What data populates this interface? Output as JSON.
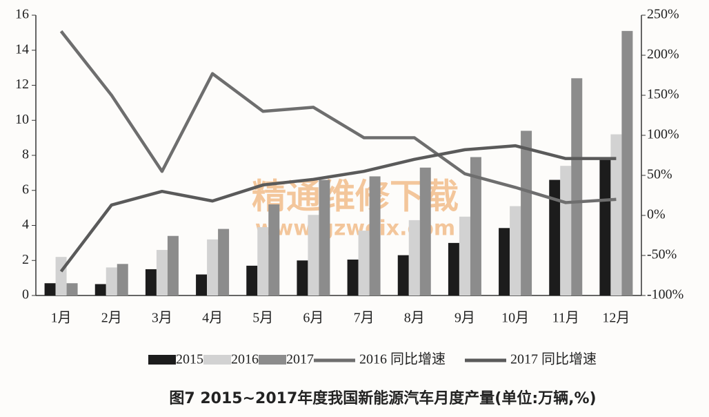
{
  "chart_data": {
    "type": "bar",
    "title": "图7  2015~2017年度我国新能源汽车月度产量(单位:万辆,%)",
    "watermark": "精通维修下载",
    "watermark_url": "www.gzweix.com",
    "categories": [
      "1月",
      "2月",
      "3月",
      "4月",
      "5月",
      "6月",
      "7月",
      "8月",
      "9月",
      "10月",
      "11月",
      "12月"
    ],
    "ylim": [
      0,
      16
    ],
    "yticks": [
      0,
      2,
      4,
      6,
      8,
      10,
      12,
      14,
      16
    ],
    "y2lim": [
      -100,
      250
    ],
    "y2ticks": [
      {
        "value": -100,
        "label": "-100%"
      },
      {
        "value": -50,
        "label": "-50%"
      },
      {
        "value": 0,
        "label": "0%"
      },
      {
        "value": 50,
        "label": "50%"
      },
      {
        "value": 100,
        "label": "100%"
      },
      {
        "value": 150,
        "label": "150%"
      },
      {
        "value": 200,
        "label": "200%"
      },
      {
        "value": 250,
        "label": "250%"
      }
    ],
    "series": [
      {
        "name": "2015",
        "type": "bar",
        "color": "#1c1c1c",
        "values": [
          0.7,
          0.65,
          1.5,
          1.2,
          1.7,
          2.0,
          2.05,
          2.3,
          3.0,
          3.85,
          6.6,
          7.85
        ]
      },
      {
        "name": "2016",
        "type": "bar",
        "color": "#d2d2d2",
        "values": [
          2.2,
          1.6,
          2.6,
          3.2,
          3.9,
          4.6,
          3.7,
          4.3,
          4.5,
          5.1,
          7.4,
          9.2
        ]
      },
      {
        "name": "2017",
        "type": "bar",
        "color": "#8c8c8c",
        "values": [
          0.7,
          1.8,
          3.4,
          3.8,
          5.2,
          6.6,
          6.8,
          7.3,
          7.9,
          9.4,
          12.4,
          15.1
        ]
      },
      {
        "name": "2016 同比增速",
        "type": "line",
        "axis": "y2",
        "color": "#6e6e6e",
        "values": [
          230,
          150,
          55,
          177,
          130,
          135,
          97,
          97,
          52,
          35,
          16,
          20
        ]
      },
      {
        "name": "2017 同比增速",
        "type": "line",
        "axis": "y2",
        "color": "#5a5a5a",
        "values": [
          -70,
          13,
          30,
          18,
          38,
          45,
          55,
          70,
          82,
          87,
          71,
          71
        ]
      }
    ]
  }
}
